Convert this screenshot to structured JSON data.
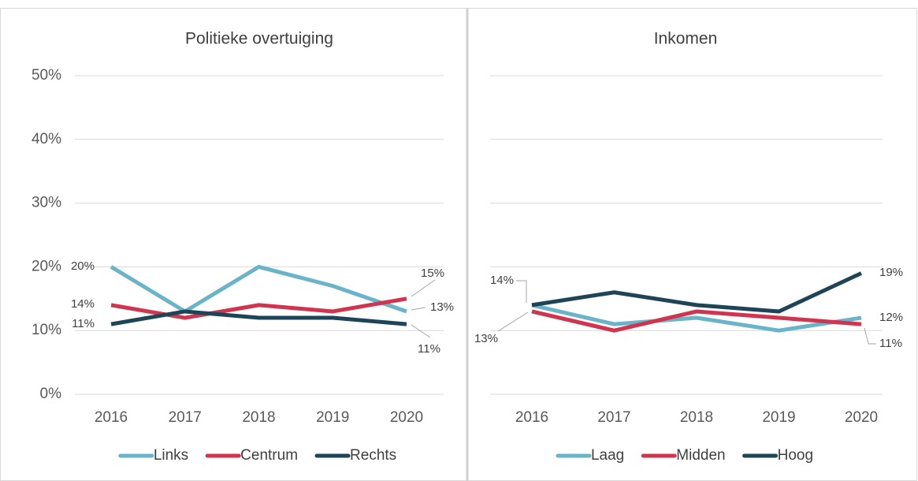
{
  "chart_data": [
    {
      "type": "line",
      "title": "Politieke overtuiging",
      "categories": [
        "2016",
        "2017",
        "2018",
        "2019",
        "2020"
      ],
      "ylim": [
        0,
        50
      ],
      "yticks": [
        {
          "value": 0,
          "label": "0%"
        },
        {
          "value": 10,
          "label": "10%"
        },
        {
          "value": 20,
          "label": "20%"
        },
        {
          "value": 30,
          "label": "30%"
        },
        {
          "value": 40,
          "label": "40%"
        },
        {
          "value": 50,
          "label": "50%"
        }
      ],
      "ytick_labels": true,
      "grid": true,
      "series": [
        {
          "name": "Links",
          "color": "#6ab4ca",
          "values": [
            20,
            13,
            20,
            17,
            13
          ],
          "value_labels": [
            "20%",
            null,
            null,
            null,
            "13%"
          ]
        },
        {
          "name": "Centrum",
          "color": "#d0344f",
          "values": [
            14,
            12,
            14,
            13,
            15
          ],
          "value_labels": [
            "14%",
            null,
            null,
            null,
            "15%"
          ]
        },
        {
          "name": "Rechts",
          "color": "#1d4557",
          "values": [
            11,
            13,
            12,
            12,
            11
          ],
          "value_labels": [
            "11%",
            null,
            null,
            null,
            "11%"
          ]
        }
      ]
    },
    {
      "type": "line",
      "title": "Inkomen",
      "categories": [
        "2016",
        "2017",
        "2018",
        "2019",
        "2020"
      ],
      "ylim": [
        0,
        50
      ],
      "yticks": [
        0,
        10,
        20,
        30,
        40,
        50
      ],
      "ytick_labels": false,
      "grid": true,
      "series": [
        {
          "name": "Laag",
          "color": "#6ab4ca",
          "values": [
            14,
            11,
            12,
            10,
            12
          ],
          "value_labels": [
            null,
            null,
            null,
            null,
            "12%"
          ]
        },
        {
          "name": "Midden",
          "color": "#d0344f",
          "values": [
            13,
            10,
            13,
            12,
            11
          ],
          "value_labels": [
            "13%",
            null,
            null,
            null,
            "11%"
          ]
        },
        {
          "name": "Hoog",
          "color": "#1d4557",
          "values": [
            14,
            16,
            14,
            13,
            19
          ],
          "value_labels": [
            "14%",
            null,
            null,
            null,
            "19%"
          ]
        }
      ]
    }
  ]
}
